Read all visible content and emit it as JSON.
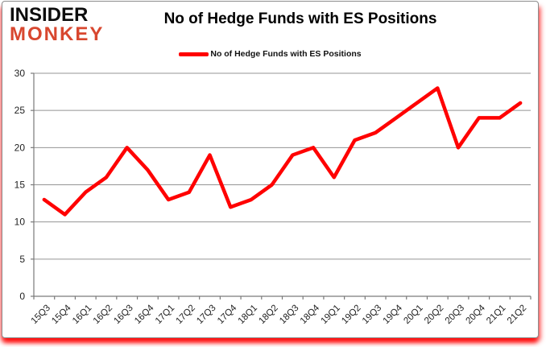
{
  "header": {
    "logo": {
      "line1": "INSIDER",
      "line2": "MONKEY"
    },
    "title": "No of Hedge Funds with ES Positions",
    "legend": {
      "label": "No of Hedge Funds with ES Positions",
      "marker_color": "#FF0000"
    }
  },
  "chart_data": {
    "type": "line",
    "title": "No of Hedge Funds with ES Positions",
    "categories": [
      "15Q3",
      "15Q4",
      "16Q1",
      "16Q2",
      "16Q3",
      "16Q4",
      "17Q1",
      "17Q2",
      "17Q3",
      "17Q4",
      "18Q1",
      "18Q2",
      "18Q3",
      "18Q4",
      "19Q1",
      "19Q2",
      "19Q3",
      "19Q4",
      "20Q1",
      "20Q2",
      "20Q3",
      "20Q4",
      "21Q1",
      "21Q2"
    ],
    "series": [
      {
        "name": "No of Hedge Funds with ES Positions",
        "color": "#FF0000",
        "values": [
          13,
          11,
          14,
          16,
          20,
          17,
          13,
          14,
          19,
          12,
          13,
          15,
          19,
          20,
          16,
          21,
          22,
          24,
          26,
          28,
          20,
          24,
          24,
          26
        ]
      }
    ],
    "ylim": [
      0,
      30
    ],
    "ytick_step": 5,
    "grid": "horizontal",
    "legend_position": "top"
  },
  "colors": {
    "series_line": "#FF0000",
    "logo_black": "#0d0d0d",
    "logo_red": "#d8472f",
    "gridline": "#949494",
    "axis": "#7a7a7a",
    "tick_text": "#1f1f1f",
    "card_border": "#8c8c8c",
    "glow": "#ff0000"
  }
}
